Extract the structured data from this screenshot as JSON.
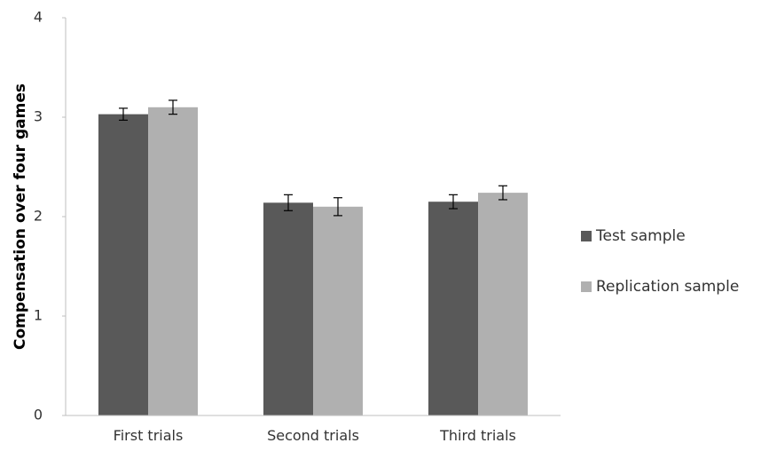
{
  "chart_data": {
    "type": "bar",
    "title": "",
    "xlabel": "",
    "ylabel": "Compensation over four games",
    "categories": [
      "First trials",
      "Second trials",
      "Third trials"
    ],
    "ylim": [
      0,
      4
    ],
    "yticks": [
      0,
      1,
      2,
      3,
      4
    ],
    "grid": false,
    "legend_position": "right",
    "series": [
      {
        "name": "Test sample",
        "color": "#595959",
        "values": [
          3.03,
          2.14,
          2.15
        ],
        "errors": [
          0.06,
          0.08,
          0.07
        ]
      },
      {
        "name": "Replication sample",
        "color": "#b0b0b0",
        "values": [
          3.1,
          2.1,
          2.24
        ],
        "errors": [
          0.07,
          0.09,
          0.07
        ]
      }
    ]
  }
}
